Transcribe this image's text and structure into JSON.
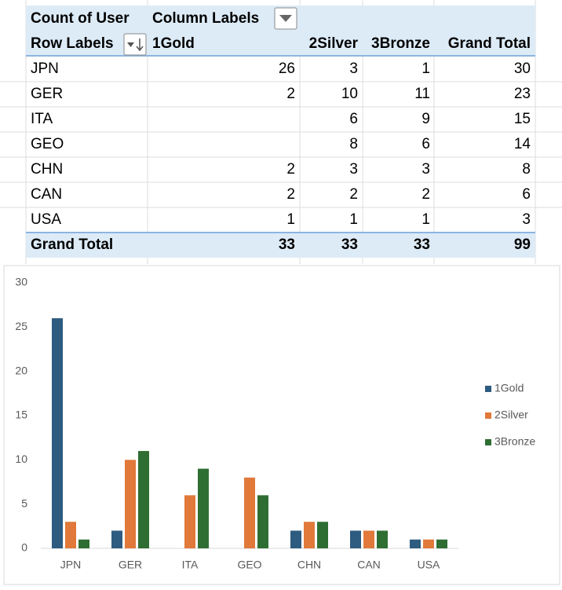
{
  "pivot": {
    "corner": "Count of User",
    "column_labels": "Column Labels",
    "headers": [
      "Row Labels",
      "1Gold",
      "2Silver",
      "3Bronze",
      "Grand Total"
    ],
    "rows": [
      [
        "JPN",
        26,
        3,
        1,
        30
      ],
      [
        "GER",
        2,
        10,
        11,
        23
      ],
      [
        "ITA",
        null,
        6,
        9,
        15
      ],
      [
        "GEO",
        null,
        8,
        6,
        14
      ],
      [
        "CHN",
        2,
        3,
        3,
        8
      ],
      [
        "CAN",
        2,
        2,
        2,
        6
      ],
      [
        "USA",
        1,
        1,
        1,
        3
      ]
    ],
    "total": [
      "Grand Total",
      33,
      33,
      33,
      99
    ]
  },
  "chart_data": {
    "type": "bar",
    "categories": [
      "JPN",
      "GER",
      "ITA",
      "GEO",
      "CHN",
      "CAN",
      "USA"
    ],
    "series": [
      {
        "name": "1Gold",
        "color": "#2e5b80",
        "values": [
          26,
          2,
          null,
          null,
          2,
          2,
          1
        ]
      },
      {
        "name": "2Silver",
        "color": "#e0793a",
        "values": [
          3,
          10,
          6,
          8,
          3,
          2,
          1
        ]
      },
      {
        "name": "3Bronze",
        "color": "#2f6e33",
        "values": [
          1,
          11,
          9,
          6,
          3,
          2,
          1
        ]
      }
    ],
    "ylim": [
      0,
      30
    ],
    "yticks": [
      0,
      5,
      10,
      15,
      20,
      25,
      30
    ],
    "grid": false,
    "legend": "right"
  }
}
